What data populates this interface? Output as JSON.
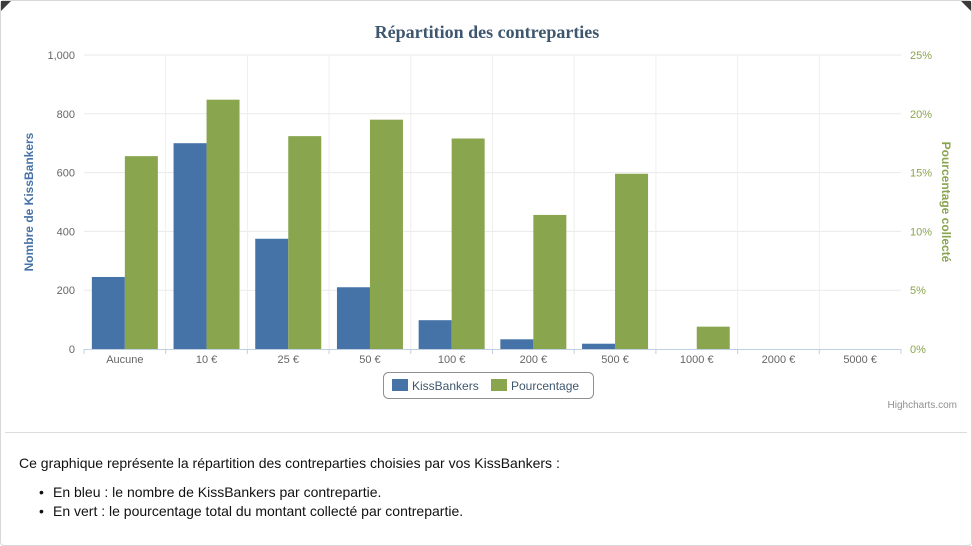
{
  "chart_data": {
    "type": "bar",
    "title": "Répartition des contreparties",
    "categories": [
      "Aucune",
      "10 €",
      "25 €",
      "50 €",
      "100 €",
      "200 €",
      "500 €",
      "1000 €",
      "2000 €",
      "5000 €"
    ],
    "y_left": {
      "label": "Nombre de KissBankers",
      "range": [
        0,
        1000
      ],
      "ticks": [
        "0",
        "200",
        "400",
        "600",
        "800",
        "1,000"
      ]
    },
    "y_right": {
      "label": "Pourcentage collecté",
      "range": [
        0,
        25
      ],
      "ticks": [
        "0%",
        "5%",
        "10%",
        "15%",
        "20%",
        "25%"
      ]
    },
    "series": [
      {
        "name": "KissBankers",
        "axis": "left",
        "color": "#4572a7",
        "values": [
          245,
          700,
          375,
          210,
          98,
          33,
          18,
          0,
          0,
          0
        ]
      },
      {
        "name": "Pourcentage",
        "axis": "right",
        "color": "#89a54e",
        "values": [
          16.4,
          21.2,
          18.1,
          19.5,
          17.9,
          11.4,
          14.9,
          1.9,
          0,
          0
        ]
      }
    ],
    "grid": true,
    "legend_position": "bottom-center",
    "credits": "Highcharts.com"
  },
  "description": {
    "intro": "Ce graphique représente la répartition des contreparties choisies par vos KissBankers :",
    "items": [
      "En bleu : le nombre de KissBankers par contrepartie.",
      "En vert : le pourcentage total du montant collecté par contrepartie."
    ]
  }
}
